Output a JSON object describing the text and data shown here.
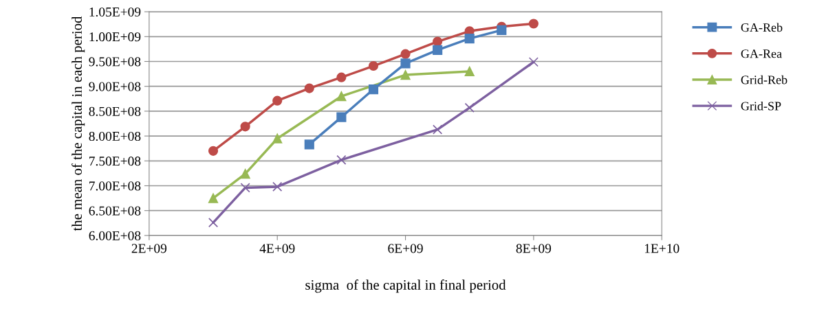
{
  "chart_data": {
    "type": "line",
    "xlabel": "sigma  of the capital in final period",
    "ylabel": "the mean of the capital in each period",
    "xlim": [
      2000000000.0,
      10000000000.0
    ],
    "xticks": [
      {
        "value": 2000000000.0,
        "label": "2E+09"
      },
      {
        "value": 4000000000.0,
        "label": "4E+09"
      },
      {
        "value": 6000000000.0,
        "label": "6E+09"
      },
      {
        "value": 8000000000.0,
        "label": "8E+09"
      },
      {
        "value": 10000000000.0,
        "label": "1E+10"
      }
    ],
    "ylim": [
      600000000.0,
      1050000000.0
    ],
    "yticks": [
      {
        "value": 600000000.0,
        "label": "6.00E+08"
      },
      {
        "value": 650000000.0,
        "label": "6.50E+08"
      },
      {
        "value": 700000000.0,
        "label": "7.00E+08"
      },
      {
        "value": 750000000.0,
        "label": "7.50E+08"
      },
      {
        "value": 800000000.0,
        "label": "8.00E+08"
      },
      {
        "value": 850000000.0,
        "label": "8.50E+08"
      },
      {
        "value": 900000000.0,
        "label": "9.00E+08"
      },
      {
        "value": 950000000.0,
        "label": "9.50E+08"
      },
      {
        "value": 1000000000.0,
        "label": "1.00E+09"
      },
      {
        "value": 1050000000.0,
        "label": "1.05E+09"
      }
    ],
    "grid": "y",
    "legend": "right",
    "series": [
      {
        "name": "GA-Reb",
        "color": "#4a7ebb",
        "marker": "square",
        "x": [
          4500000000.0,
          5000000000.0,
          5500000000.0,
          6000000000.0,
          6500000000.0,
          7000000000.0,
          7500000000.0
        ],
        "values": [
          783000000.0,
          838000000.0,
          894000000.0,
          946000000.0,
          973000000.0,
          996000000.0,
          1013000000.0
        ]
      },
      {
        "name": "GA-Rea",
        "color": "#be4b48",
        "marker": "circle",
        "x": [
          3000000000.0,
          3500000000.0,
          4000000000.0,
          4500000000.0,
          5000000000.0,
          5500000000.0,
          6000000000.0,
          6500000000.0,
          7000000000.0,
          7500000000.0,
          8000000000.0
        ],
        "values": [
          770000000.0,
          819000000.0,
          871000000.0,
          896000000.0,
          918000000.0,
          941000000.0,
          965000000.0,
          990000000.0,
          1011000000.0,
          1020000000.0,
          1026000000.0
        ]
      },
      {
        "name": "Grid-Reb",
        "color": "#98b954",
        "marker": "triangle",
        "x": [
          3000000000.0,
          3500000000.0,
          4000000000.0,
          5000000000.0,
          6000000000.0,
          7000000000.0
        ],
        "values": [
          675000000.0,
          724000000.0,
          795000000.0,
          880000000.0,
          923000000.0,
          930000000.0
        ]
      },
      {
        "name": "Grid-SP",
        "color": "#7d60a0",
        "marker": "cross",
        "x": [
          3000000000.0,
          3500000000.0,
          4000000000.0,
          5000000000.0,
          6500000000.0,
          7000000000.0,
          8000000000.0
        ],
        "values": [
          626000000.0,
          696000000.0,
          698000000.0,
          752000000.0,
          813000000.0,
          857000000.0,
          949000000.0
        ]
      }
    ]
  }
}
